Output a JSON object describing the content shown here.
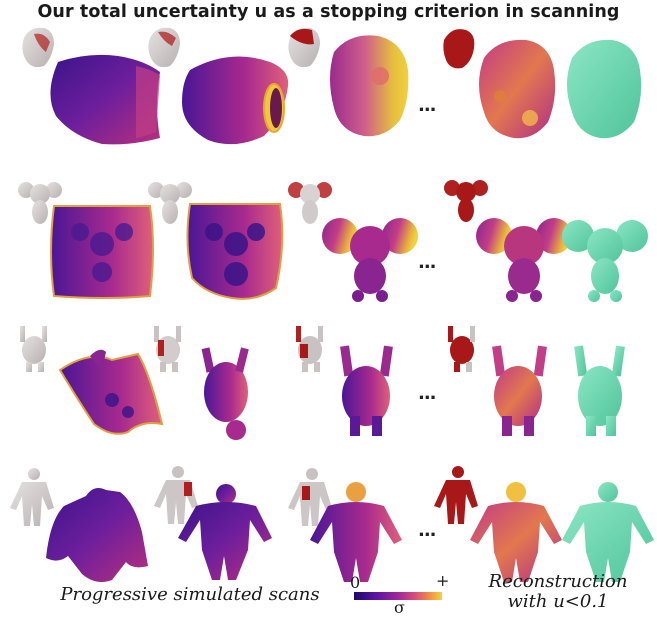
{
  "title": "Our total uncertainty u as a stopping criterion in scanning",
  "rows": [
    {
      "name": "head"
    },
    {
      "name": "mouse"
    },
    {
      "name": "monster"
    },
    {
      "name": "human"
    }
  ],
  "ellipsis": "...",
  "captions": {
    "progressive": "Progressive simulated scans",
    "reconstruction_line1": "Reconstruction",
    "reconstruction_line2": "with u<0.1"
  },
  "colorbar": {
    "min_label": "0",
    "max_label": "+",
    "symbol": "σ",
    "colors": [
      "#1a0a6b",
      "#5a14a0",
      "#a0289a",
      "#d8507a",
      "#f08a48",
      "#f6d23a"
    ]
  },
  "colors": {
    "reconstruction": "#6fd8b0",
    "scan_gray": "#cfcaca",
    "scan_red": "#a81818"
  }
}
